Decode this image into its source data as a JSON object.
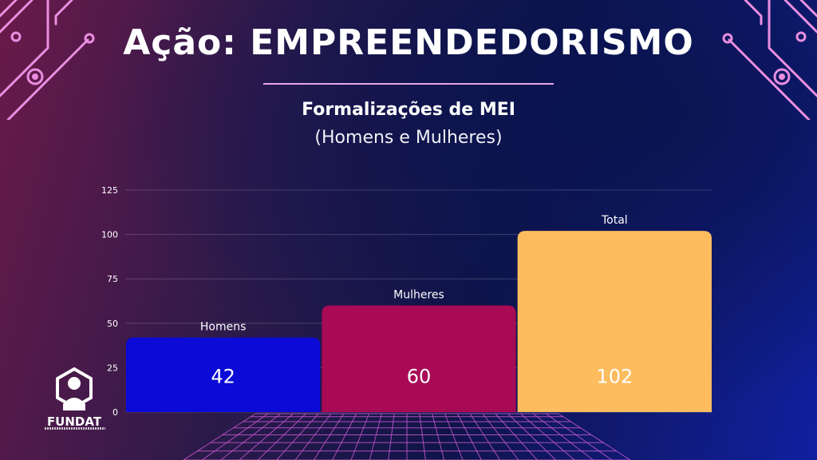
{
  "header": {
    "title": "Ação: EMPREENDEDORISMO",
    "subtitle_line1": "Formalizações de MEI",
    "subtitle_line2": "(Homens e Mulheres)"
  },
  "logo": {
    "text": "FUNDAT"
  },
  "colors": {
    "homens": "#0b0ad6",
    "mulheres": "#a80a55",
    "total": "#fdbd5e",
    "accent": "#e6a6e8"
  },
  "chart_data": {
    "type": "bar",
    "categories": [
      "Homens",
      "Mulheres",
      "Total"
    ],
    "values": [
      42,
      60,
      102
    ],
    "value_labels": [
      "42",
      "60",
      "102"
    ],
    "ylim": [
      0,
      125
    ],
    "yticks": [
      "0",
      "25",
      "50",
      "75",
      "100",
      "125"
    ],
    "grid": true,
    "xlabel": "",
    "ylabel": ""
  }
}
